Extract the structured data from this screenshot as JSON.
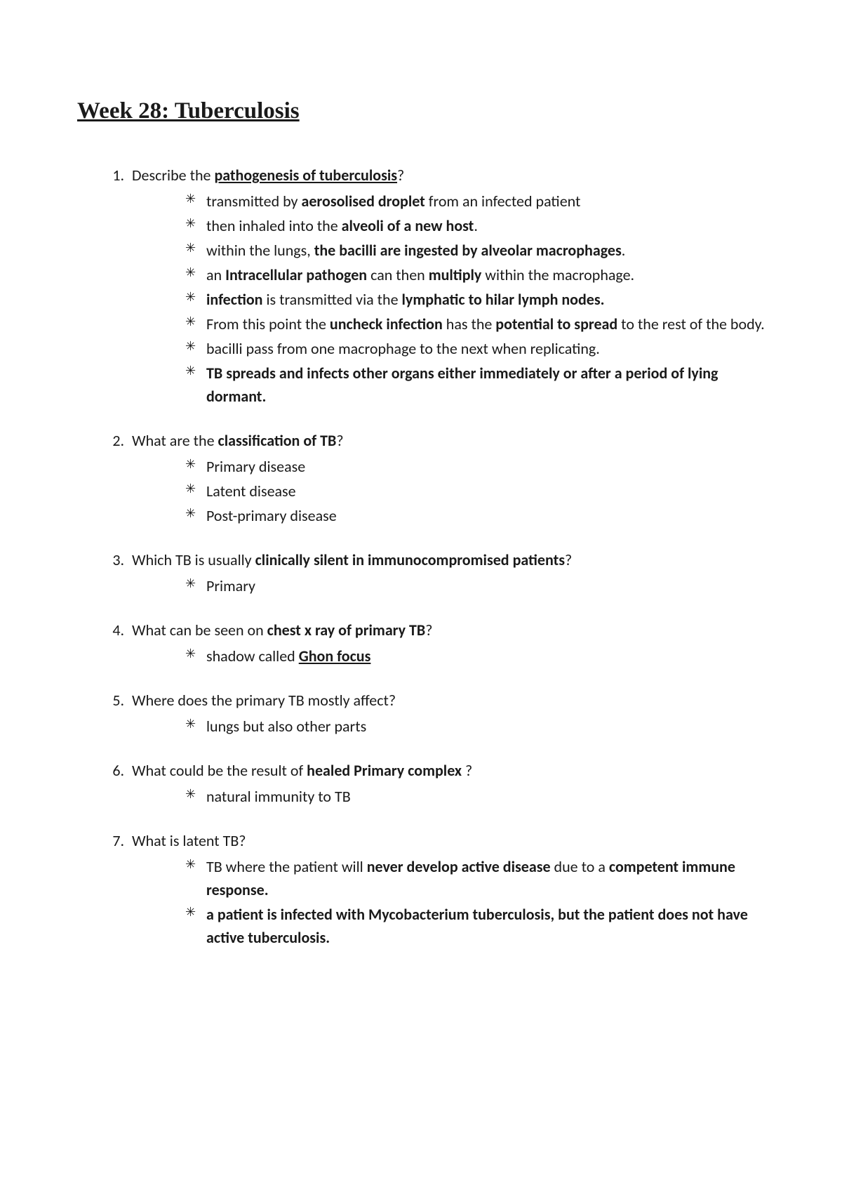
{
  "title": "Week 28: Tuberculosis",
  "questions": [
    {
      "q": "Describe the <span class='b u'>pathogenesis of tuberculosis</span>?",
      "a": [
        "transmitted by <span class='b'>aerosolised droplet</span> from an infected patient",
        "then inhaled into the <span class='b'>alveoli of a new host</span>.",
        "within the lungs, <span class='b'>the bacilli are ingested by alveolar macrophages</span>.",
        "an <span class='b'>Intracellular pathogen</span> can then <span class='b'>multiply</span> within the macrophage.",
        "<span class='b'>infection</span> is transmitted via the <span class='b'>lymphatic to hilar lymph nodes.</span>",
        "From this point the <span class='b'>uncheck infection</span> has the <span class='b'>potential to spread</span> to the rest of the body.",
        "bacilli pass from one macrophage to the next when replicating.",
        "<span class='b'>TB spreads and infects other organs either immediately or after a period of lying dormant.</span>"
      ]
    },
    {
      "q": "What are the <span class='b'>classification of TB</span>?",
      "a": [
        "Primary disease",
        "Latent disease",
        "Post-primary disease"
      ]
    },
    {
      "q": "Which TB is usually <span class='b'>clinically silent in immunocompromised patients</span>?",
      "a": [
        "Primary"
      ]
    },
    {
      "q": "What can be seen on <span class='b'>chest x ray of primary TB</span>?",
      "a": [
        "shadow called <span class='b u'>Ghon focus</span>"
      ]
    },
    {
      "q": "Where does the primary TB mostly affect?",
      "a": [
        "lungs but also other parts"
      ]
    },
    {
      "q": "What could be the result of <span class='b'>healed Primary complex</span> ?",
      "a": [
        "natural immunity to TB"
      ]
    },
    {
      "q": "What is latent TB?",
      "a": [
        "TB where the patient will <span class='b'>never develop active disease</span> due to a <span class='b'>competent immune response.</span>",
        "<span class='b'>a patient is infected with Mycobacterium tuberculosis, but the patient does not have active tuberculosis.</span>"
      ]
    }
  ]
}
